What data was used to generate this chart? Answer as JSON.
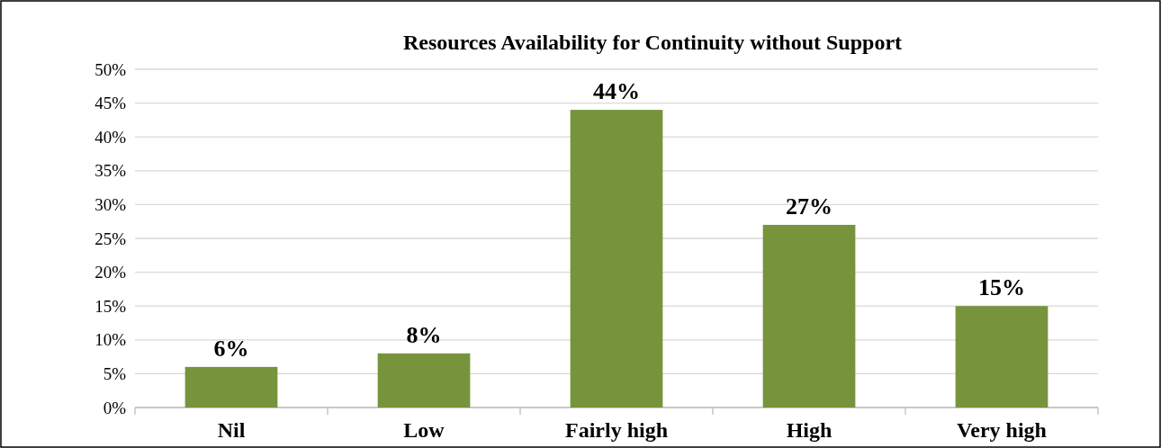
{
  "chart_data": {
    "type": "bar",
    "title": "Resources Availability for Continuity without Support",
    "categories": [
      "Nil",
      "Low",
      "Fairly high",
      "High",
      "Very high"
    ],
    "values": [
      0.06,
      0.08,
      0.44,
      0.27,
      0.15
    ],
    "color": "#77933c",
    "value_labels": [
      "6%",
      "8%",
      "44%",
      "27%",
      "15%"
    ],
    "ylim": [
      0,
      0.5
    ],
    "yticks": [
      {
        "value": 0,
        "label": "0%"
      },
      {
        "value": 0.05,
        "label": "5%"
      },
      {
        "value": 0.1,
        "label": "10%"
      },
      {
        "value": 0.15,
        "label": "15%"
      },
      {
        "value": 0.2,
        "label": "20%"
      },
      {
        "value": 0.25,
        "label": "25%"
      },
      {
        "value": 0.3,
        "label": "30%"
      },
      {
        "value": 0.35,
        "label": "35%"
      },
      {
        "value": 0.4,
        "label": "40%"
      },
      {
        "value": 0.45,
        "label": "45%"
      },
      {
        "value": 0.5,
        "label": "50%"
      }
    ],
    "grid": "y"
  }
}
